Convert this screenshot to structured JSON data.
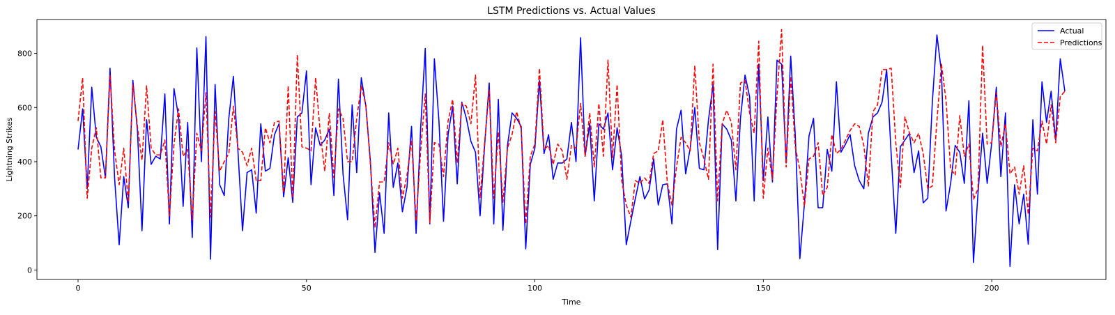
{
  "chart_data": {
    "type": "line",
    "title": "LSTM Predictions vs. Actual Values",
    "xlabel": "Time",
    "ylabel": "Lightning Strikes",
    "xlim": [
      -9,
      225
    ],
    "ylim": [
      -35,
      925
    ],
    "xticks": [
      0,
      50,
      100,
      150,
      200
    ],
    "yticks": [
      0,
      200,
      400,
      600,
      800
    ],
    "grid": false,
    "legend_position": "top-right",
    "colors": {
      "actual": "#0000ff",
      "predictions": "#ff0000"
    },
    "series": [
      {
        "name": "Actual",
        "style": "solid",
        "values": [
          445,
          595,
          300,
          675,
          490,
          455,
          340,
          745,
          340,
          93,
          345,
          230,
          700,
          515,
          145,
          555,
          390,
          420,
          410,
          650,
          170,
          670,
          565,
          235,
          545,
          120,
          820,
          400,
          862,
          40,
          685,
          315,
          275,
          560,
          715,
          440,
          145,
          360,
          370,
          210,
          540,
          365,
          375,
          500,
          540,
          270,
          415,
          250,
          565,
          580,
          735,
          315,
          525,
          460,
          480,
          520,
          275,
          705,
          355,
          185,
          610,
          360,
          710,
          605,
          400,
          65,
          285,
          135,
          580,
          305,
          395,
          215,
          305,
          530,
          135,
          525,
          818,
          170,
          780,
          550,
          180,
          500,
          605,
          318,
          620,
          560,
          475,
          435,
          200,
          460,
          690,
          170,
          630,
          147,
          460,
          580,
          560,
          530,
          78,
          390,
          450,
          700,
          430,
          500,
          335,
          395,
          395,
          410,
          545,
          400,
          858,
          420,
          540,
          255,
          540,
          520,
          580,
          370,
          525,
          420,
          93,
          180,
          265,
          345,
          262,
          295,
          410,
          240,
          315,
          318,
          170,
          520,
          590,
          355,
          450,
          600,
          375,
          370,
          555,
          685,
          75,
          540,
          520,
          480,
          255,
          560,
          720,
          640,
          255,
          760,
          330,
          565,
          325,
          775,
          760,
          395,
          790,
          495,
          42,
          245,
          495,
          560,
          230,
          230,
          445,
          365,
          695,
          435,
          465,
          500,
          385,
          330,
          300,
          505,
          565,
          580,
          620,
          740,
          425,
          135,
          455,
          480,
          505,
          360,
          440,
          248,
          265,
          620,
          868,
          730,
          218,
          320,
          460,
          435,
          320,
          625,
          28,
          285,
          505,
          320,
          470,
          675,
          345,
          580,
          13,
          315,
          170,
          280,
          95,
          555,
          280,
          695,
          545,
          660,
          480,
          780,
          660
        ]
      },
      {
        "name": "Predictions",
        "style": "dashed",
        "values": [
          550,
          710,
          265,
          450,
          525,
          340,
          340,
          720,
          440,
          315,
          450,
          250,
          685,
          530,
          405,
          680,
          450,
          425,
          425,
          480,
          200,
          465,
          595,
          420,
          445,
          185,
          505,
          440,
          655,
          195,
          585,
          365,
          400,
          430,
          605,
          450,
          435,
          385,
          450,
          330,
          330,
          525,
          470,
          545,
          550,
          285,
          680,
          265,
          795,
          455,
          450,
          440,
          710,
          510,
          365,
          580,
          340,
          595,
          560,
          400,
          400,
          560,
          680,
          610,
          390,
          155,
          325,
          325,
          470,
          390,
          450,
          265,
          350,
          480,
          180,
          440,
          650,
          175,
          470,
          465,
          345,
          550,
          630,
          395,
          615,
          605,
          540,
          720,
          265,
          470,
          665,
          265,
          510,
          250,
          450,
          500,
          585,
          520,
          170,
          420,
          465,
          745,
          445,
          460,
          390,
          465,
          440,
          335,
          460,
          450,
          615,
          420,
          580,
          380,
          615,
          420,
          775,
          415,
          685,
          330,
          240,
          195,
          330,
          320,
          340,
          320,
          430,
          440,
          555,
          320,
          240,
          380,
          490,
          470,
          440,
          755,
          470,
          410,
          335,
          760,
          255,
          540,
          590,
          545,
          370,
          690,
          700,
          580,
          505,
          845,
          265,
          450,
          335,
          645,
          888,
          380,
          715,
          455,
          370,
          235,
          410,
          420,
          470,
          275,
          305,
          500,
          430,
          445,
          480,
          515,
          540,
          530,
          460,
          310,
          585,
          610,
          740,
          740,
          745,
          470,
          305,
          565,
          505,
          470,
          505,
          430,
          300,
          310,
          550,
          760,
          625,
          375,
          350,
          570,
          420,
          465,
          260,
          300,
          830,
          465,
          470,
          655,
          455,
          540,
          355,
          380,
          280,
          385,
          205,
          450,
          440,
          550,
          465,
          610,
          470,
          640,
          660
        ]
      }
    ]
  }
}
